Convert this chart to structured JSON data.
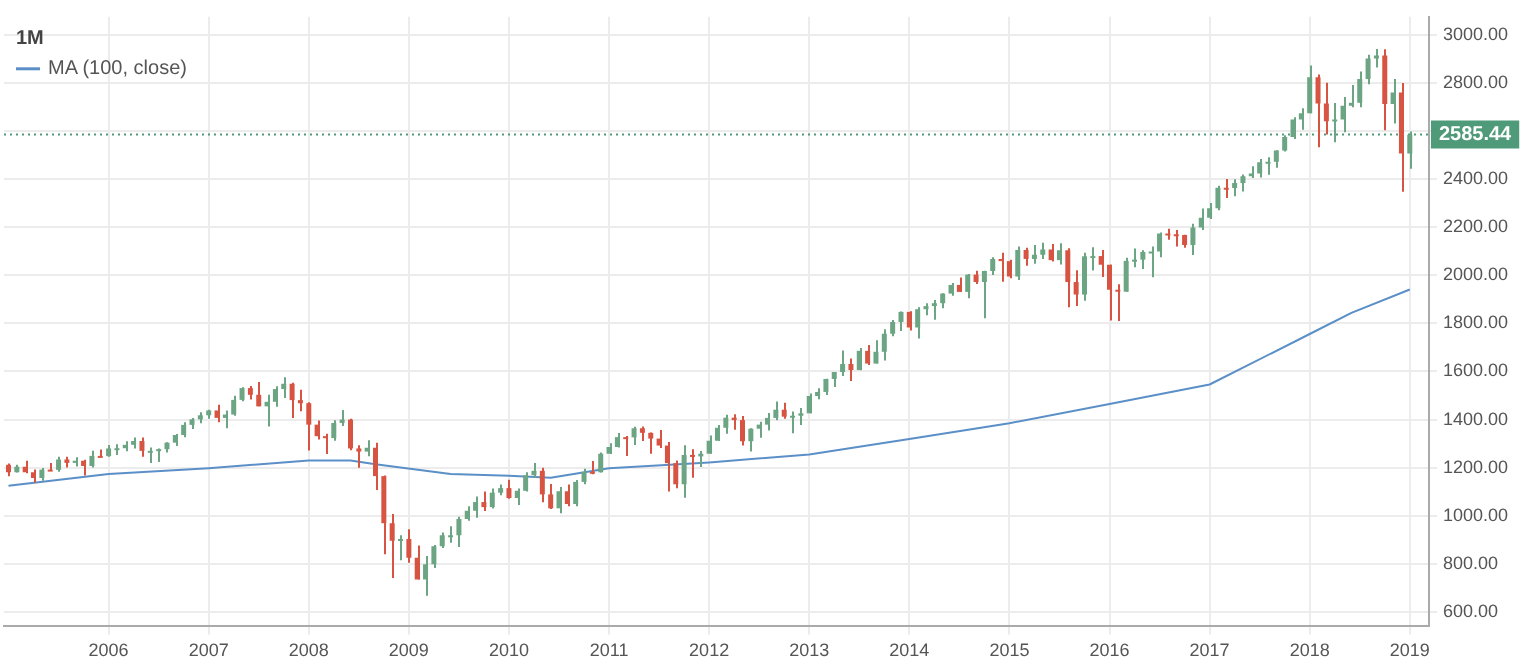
{
  "chart_data": {
    "type": "candlestick",
    "title": "1M",
    "x": [
      "2005-01",
      "2005-02",
      "2005-03",
      "2005-04",
      "2005-05",
      "2005-06",
      "2005-07",
      "2005-08",
      "2005-09",
      "2005-10",
      "2005-11",
      "2005-12",
      "2006-01",
      "2006-02",
      "2006-03",
      "2006-04",
      "2006-05",
      "2006-06",
      "2006-07",
      "2006-08",
      "2006-09",
      "2006-10",
      "2006-11",
      "2006-12",
      "2007-01",
      "2007-02",
      "2007-03",
      "2007-04",
      "2007-05",
      "2007-06",
      "2007-07",
      "2007-08",
      "2007-09",
      "2007-10",
      "2007-11",
      "2007-12",
      "2008-01",
      "2008-02",
      "2008-03",
      "2008-04",
      "2008-05",
      "2008-06",
      "2008-07",
      "2008-08",
      "2008-09",
      "2008-10",
      "2008-11",
      "2008-12",
      "2009-01",
      "2009-02",
      "2009-03",
      "2009-04",
      "2009-05",
      "2009-06",
      "2009-07",
      "2009-08",
      "2009-09",
      "2009-10",
      "2009-11",
      "2009-12",
      "2010-01",
      "2010-02",
      "2010-03",
      "2010-04",
      "2010-05",
      "2010-06",
      "2010-07",
      "2010-08",
      "2010-09",
      "2010-10",
      "2010-11",
      "2010-12",
      "2011-01",
      "2011-02",
      "2011-03",
      "2011-04",
      "2011-05",
      "2011-06",
      "2011-07",
      "2011-08",
      "2011-09",
      "2011-10",
      "2011-11",
      "2011-12",
      "2012-01",
      "2012-02",
      "2012-03",
      "2012-04",
      "2012-05",
      "2012-06",
      "2012-07",
      "2012-08",
      "2012-09",
      "2012-10",
      "2012-11",
      "2012-12",
      "2013-01",
      "2013-02",
      "2013-03",
      "2013-04",
      "2013-05",
      "2013-06",
      "2013-07",
      "2013-08",
      "2013-09",
      "2013-10",
      "2013-11",
      "2013-12",
      "2014-01",
      "2014-02",
      "2014-03",
      "2014-04",
      "2014-05",
      "2014-06",
      "2014-07",
      "2014-08",
      "2014-09",
      "2014-10",
      "2014-11",
      "2014-12",
      "2015-01",
      "2015-02",
      "2015-03",
      "2015-04",
      "2015-05",
      "2015-06",
      "2015-07",
      "2015-08",
      "2015-09",
      "2015-10",
      "2015-11",
      "2015-12",
      "2016-01",
      "2016-02",
      "2016-03",
      "2016-04",
      "2016-05",
      "2016-06",
      "2016-07",
      "2016-08",
      "2016-09",
      "2016-10",
      "2016-11",
      "2016-12",
      "2017-01",
      "2017-02",
      "2017-03",
      "2017-04",
      "2017-05",
      "2017-06",
      "2017-07",
      "2017-08",
      "2017-09",
      "2017-10",
      "2017-11",
      "2017-12",
      "2018-01",
      "2018-02",
      "2018-03",
      "2018-04",
      "2018-05",
      "2018-06",
      "2018-07",
      "2018-08",
      "2018-09",
      "2018-10",
      "2018-11",
      "2018-12",
      "2019-01"
    ],
    "ohlc": [
      [
        1212,
        1217,
        1164,
        1181
      ],
      [
        1181,
        1212,
        1180,
        1204
      ],
      [
        1204,
        1229,
        1177,
        1181
      ],
      [
        1181,
        1192,
        1137,
        1157
      ],
      [
        1157,
        1199,
        1146,
        1192
      ],
      [
        1192,
        1219,
        1188,
        1191
      ],
      [
        1191,
        1245,
        1183,
        1234
      ],
      [
        1234,
        1245,
        1201,
        1220
      ],
      [
        1220,
        1243,
        1205,
        1229
      ],
      [
        1229,
        1233,
        1168,
        1207
      ],
      [
        1207,
        1270,
        1201,
        1249
      ],
      [
        1249,
        1276,
        1246,
        1248
      ],
      [
        1248,
        1294,
        1245,
        1280
      ],
      [
        1280,
        1297,
        1253,
        1281
      ],
      [
        1281,
        1310,
        1268,
        1295
      ],
      [
        1295,
        1326,
        1280,
        1311
      ],
      [
        1311,
        1326,
        1245,
        1270
      ],
      [
        1270,
        1284,
        1219,
        1270
      ],
      [
        1270,
        1280,
        1224,
        1277
      ],
      [
        1277,
        1306,
        1263,
        1304
      ],
      [
        1304,
        1340,
        1290,
        1336
      ],
      [
        1336,
        1389,
        1327,
        1378
      ],
      [
        1378,
        1407,
        1361,
        1401
      ],
      [
        1401,
        1431,
        1385,
        1418
      ],
      [
        1418,
        1441,
        1403,
        1438
      ],
      [
        1438,
        1462,
        1389,
        1407
      ],
      [
        1407,
        1438,
        1364,
        1421
      ],
      [
        1421,
        1499,
        1416,
        1482
      ],
      [
        1482,
        1535,
        1476,
        1531
      ],
      [
        1531,
        1540,
        1484,
        1503
      ],
      [
        1503,
        1556,
        1455,
        1455
      ],
      [
        1455,
        1503,
        1371,
        1474
      ],
      [
        1474,
        1539,
        1453,
        1527
      ],
      [
        1527,
        1576,
        1490,
        1549
      ],
      [
        1549,
        1553,
        1407,
        1481
      ],
      [
        1481,
        1524,
        1435,
        1468
      ],
      [
        1468,
        1472,
        1271,
        1379
      ],
      [
        1379,
        1396,
        1317,
        1331
      ],
      [
        1331,
        1341,
        1257,
        1323
      ],
      [
        1323,
        1397,
        1312,
        1386
      ],
      [
        1386,
        1440,
        1373,
        1400
      ],
      [
        1400,
        1404,
        1272,
        1280
      ],
      [
        1280,
        1293,
        1200,
        1267
      ],
      [
        1267,
        1314,
        1248,
        1283
      ],
      [
        1283,
        1304,
        1107,
        1165
      ],
      [
        1165,
        1168,
        840,
        969
      ],
      [
        969,
        1007,
        741,
        896
      ],
      [
        896,
        919,
        815,
        903
      ],
      [
        903,
        944,
        805,
        826
      ],
      [
        826,
        876,
        735,
        735
      ],
      [
        735,
        833,
        667,
        798
      ],
      [
        798,
        878,
        783,
        873
      ],
      [
        873,
        930,
        866,
        919
      ],
      [
        919,
        956,
        888,
        919
      ],
      [
        919,
        996,
        870,
        987
      ],
      [
        987,
        1040,
        979,
        1021
      ],
      [
        1021,
        1080,
        992,
        1057
      ],
      [
        1057,
        1101,
        1020,
        1036
      ],
      [
        1036,
        1113,
        1030,
        1096
      ],
      [
        1096,
        1130,
        1085,
        1115
      ],
      [
        1115,
        1150,
        1071,
        1074
      ],
      [
        1074,
        1113,
        1045,
        1104
      ],
      [
        1104,
        1181,
        1101,
        1169
      ],
      [
        1169,
        1220,
        1157,
        1187
      ],
      [
        1187,
        1200,
        1056,
        1089
      ],
      [
        1089,
        1132,
        1028,
        1031
      ],
      [
        1031,
        1120,
        1011,
        1102
      ],
      [
        1102,
        1130,
        1040,
        1049
      ],
      [
        1049,
        1149,
        1040,
        1141
      ],
      [
        1141,
        1196,
        1131,
        1183
      ],
      [
        1183,
        1228,
        1173,
        1181
      ],
      [
        1181,
        1263,
        1180,
        1258
      ],
      [
        1258,
        1302,
        1257,
        1286
      ],
      [
        1286,
        1344,
        1284,
        1327
      ],
      [
        1327,
        1332,
        1249,
        1326
      ],
      [
        1326,
        1370,
        1294,
        1364
      ],
      [
        1364,
        1371,
        1311,
        1345
      ],
      [
        1345,
        1346,
        1258,
        1321
      ],
      [
        1321,
        1357,
        1282,
        1292
      ],
      [
        1292,
        1307,
        1101,
        1219
      ],
      [
        1219,
        1230,
        1114,
        1131
      ],
      [
        1131,
        1293,
        1075,
        1253
      ],
      [
        1253,
        1277,
        1158,
        1247
      ],
      [
        1247,
        1269,
        1203,
        1258
      ],
      [
        1258,
        1334,
        1258,
        1312
      ],
      [
        1312,
        1378,
        1312,
        1366
      ],
      [
        1366,
        1420,
        1341,
        1408
      ],
      [
        1408,
        1422,
        1358,
        1398
      ],
      [
        1398,
        1415,
        1292,
        1310
      ],
      [
        1310,
        1364,
        1267,
        1362
      ],
      [
        1362,
        1391,
        1325,
        1379
      ],
      [
        1379,
        1427,
        1355,
        1407
      ],
      [
        1407,
        1475,
        1397,
        1441
      ],
      [
        1441,
        1470,
        1403,
        1412
      ],
      [
        1412,
        1434,
        1343,
        1416
      ],
      [
        1416,
        1448,
        1377,
        1426
      ],
      [
        1426,
        1509,
        1426,
        1498
      ],
      [
        1498,
        1530,
        1485,
        1515
      ],
      [
        1515,
        1570,
        1502,
        1569
      ],
      [
        1569,
        1598,
        1536,
        1598
      ],
      [
        1598,
        1687,
        1581,
        1631
      ],
      [
        1631,
        1654,
        1560,
        1606
      ],
      [
        1606,
        1698,
        1605,
        1686
      ],
      [
        1686,
        1710,
        1627,
        1633
      ],
      [
        1633,
        1730,
        1633,
        1682
      ],
      [
        1682,
        1776,
        1646,
        1757
      ],
      [
        1757,
        1814,
        1747,
        1806
      ],
      [
        1806,
        1849,
        1768,
        1848
      ],
      [
        1848,
        1851,
        1770,
        1783
      ],
      [
        1783,
        1867,
        1737,
        1859
      ],
      [
        1859,
        1884,
        1834,
        1872
      ],
      [
        1872,
        1897,
        1815,
        1884
      ],
      [
        1884,
        1925,
        1863,
        1924
      ],
      [
        1924,
        1968,
        1915,
        1960
      ],
      [
        1960,
        1991,
        1931,
        1931
      ],
      [
        1931,
        2005,
        1905,
        2003
      ],
      [
        2003,
        2019,
        1964,
        1972
      ],
      [
        1972,
        2019,
        1821,
        2018
      ],
      [
        2018,
        2075,
        2001,
        2068
      ],
      [
        2068,
        2094,
        1973,
        2059
      ],
      [
        2059,
        2065,
        1988,
        1995
      ],
      [
        1995,
        2120,
        1981,
        2105
      ],
      [
        2105,
        2115,
        2040,
        2068
      ],
      [
        2068,
        2126,
        2048,
        2086
      ],
      [
        2086,
        2135,
        2068,
        2107
      ],
      [
        2107,
        2130,
        2057,
        2063
      ],
      [
        2063,
        2133,
        2045,
        2104
      ],
      [
        2104,
        2113,
        1867,
        1972
      ],
      [
        1972,
        2021,
        1872,
        1920
      ],
      [
        1920,
        2094,
        1894,
        2079
      ],
      [
        2079,
        2117,
        2020,
        2080
      ],
      [
        2080,
        2105,
        1993,
        2044
      ],
      [
        2044,
        2044,
        1812,
        1940
      ],
      [
        1940,
        1963,
        1810,
        1932
      ],
      [
        1932,
        2073,
        1932,
        2060
      ],
      [
        2060,
        2112,
        2033,
        2065
      ],
      [
        2065,
        2104,
        2026,
        2097
      ],
      [
        2097,
        2120,
        1992,
        2099
      ],
      [
        2099,
        2178,
        2075,
        2174
      ],
      [
        2174,
        2194,
        2148,
        2171
      ],
      [
        2171,
        2188,
        2120,
        2168
      ],
      [
        2168,
        2169,
        2115,
        2126
      ],
      [
        2126,
        2214,
        2084,
        2199
      ],
      [
        2199,
        2278,
        2188,
        2239
      ],
      [
        2239,
        2301,
        2234,
        2279
      ],
      [
        2279,
        2372,
        2271,
        2364
      ],
      [
        2364,
        2401,
        2322,
        2363
      ],
      [
        2363,
        2399,
        2329,
        2384
      ],
      [
        2384,
        2419,
        2348,
        2412
      ],
      [
        2412,
        2454,
        2405,
        2423
      ],
      [
        2423,
        2484,
        2407,
        2470
      ],
      [
        2470,
        2491,
        2418,
        2472
      ],
      [
        2472,
        2520,
        2447,
        2519
      ],
      [
        2519,
        2582,
        2515,
        2575
      ],
      [
        2575,
        2657,
        2567,
        2648
      ],
      [
        2648,
        2695,
        2605,
        2674
      ],
      [
        2674,
        2873,
        2674,
        2824
      ],
      [
        2824,
        2835,
        2533,
        2714
      ],
      [
        2714,
        2801,
        2586,
        2641
      ],
      [
        2641,
        2717,
        2553,
        2648
      ],
      [
        2648,
        2742,
        2595,
        2705
      ],
      [
        2705,
        2791,
        2699,
        2718
      ],
      [
        2718,
        2848,
        2699,
        2816
      ],
      [
        2816,
        2917,
        2795,
        2902
      ],
      [
        2902,
        2941,
        2864,
        2914
      ],
      [
        2914,
        2940,
        2603,
        2712
      ],
      [
        2712,
        2816,
        2631,
        2760
      ],
      [
        2760,
        2800,
        2347,
        2507
      ],
      [
        2507,
        2598,
        2443,
        2585
      ]
    ],
    "colors": [
      "#d75442",
      "#6ba583",
      "#d75442",
      "#d75442",
      "#6ba583",
      "#d75442",
      "#6ba583",
      "#d75442",
      "#6ba583",
      "#d75442",
      "#6ba583",
      "#d75442",
      "#6ba583",
      "#6ba583",
      "#6ba583",
      "#6ba583",
      "#d75442",
      "#6ba583",
      "#6ba583",
      "#6ba583",
      "#6ba583",
      "#6ba583",
      "#6ba583",
      "#6ba583",
      "#6ba583",
      "#d75442",
      "#6ba583",
      "#6ba583",
      "#6ba583",
      "#d75442",
      "#d75442",
      "#6ba583",
      "#6ba583",
      "#6ba583",
      "#d75442",
      "#d75442",
      "#d75442",
      "#d75442",
      "#d75442",
      "#6ba583",
      "#6ba583",
      "#d75442",
      "#d75442",
      "#6ba583",
      "#d75442",
      "#d75442",
      "#d75442",
      "#6ba583",
      "#d75442",
      "#d75442",
      "#6ba583",
      "#6ba583",
      "#6ba583",
      "#6ba583",
      "#6ba583",
      "#6ba583",
      "#6ba583",
      "#d75442",
      "#6ba583",
      "#6ba583",
      "#d75442",
      "#6ba583",
      "#6ba583",
      "#6ba583",
      "#d75442",
      "#d75442",
      "#6ba583",
      "#d75442",
      "#6ba583",
      "#6ba583",
      "#d75442",
      "#6ba583",
      "#6ba583",
      "#6ba583",
      "#d75442",
      "#6ba583",
      "#d75442",
      "#d75442",
      "#d75442",
      "#d75442",
      "#d75442",
      "#6ba583",
      "#d75442",
      "#6ba583",
      "#6ba583",
      "#6ba583",
      "#6ba583",
      "#d75442",
      "#d75442",
      "#6ba583",
      "#6ba583",
      "#6ba583",
      "#6ba583",
      "#d75442",
      "#6ba583",
      "#6ba583",
      "#6ba583",
      "#6ba583",
      "#6ba583",
      "#6ba583",
      "#6ba583",
      "#d75442",
      "#6ba583",
      "#d75442",
      "#6ba583",
      "#6ba583",
      "#6ba583",
      "#6ba583",
      "#d75442",
      "#6ba583",
      "#6ba583",
      "#6ba583",
      "#6ba583",
      "#6ba583",
      "#d75442",
      "#6ba583",
      "#d75442",
      "#6ba583",
      "#6ba583",
      "#d75442",
      "#d75442",
      "#6ba583",
      "#d75442",
      "#6ba583",
      "#6ba583",
      "#d75442",
      "#6ba583",
      "#d75442",
      "#d75442",
      "#6ba583",
      "#6ba583",
      "#d75442",
      "#d75442",
      "#d75442",
      "#6ba583",
      "#6ba583",
      "#6ba583",
      "#6ba583",
      "#6ba583",
      "#d75442",
      "#d75442",
      "#d75442",
      "#6ba583",
      "#6ba583",
      "#6ba583",
      "#6ba583",
      "#d75442",
      "#6ba583",
      "#6ba583",
      "#6ba583",
      "#6ba583",
      "#6ba583",
      "#6ba583",
      "#6ba583",
      "#6ba583",
      "#6ba583",
      "#6ba583",
      "#d75442",
      "#d75442",
      "#6ba583",
      "#6ba583",
      "#6ba583",
      "#6ba583",
      "#6ba583",
      "#6ba583",
      "#d75442",
      "#6ba583",
      "#d75442",
      "#6ba583"
    ],
    "series": [
      {
        "type": "line",
        "name": "MA (100, close)",
        "color": "#5b8fc7",
        "x": [
          "2005-01",
          "2006-01",
          "2007-01",
          "2008-01",
          "2008-06",
          "2008-09",
          "2009-06",
          "2010-01",
          "2010-06",
          "2011-01",
          "2012-01",
          "2013-01",
          "2014-01",
          "2015-01",
          "2016-01",
          "2017-01",
          "2018-01",
          "2018-06",
          "2019-01"
        ],
        "values": [
          1125,
          1174,
          1198,
          1230,
          1230,
          1214,
          1174,
          1166,
          1158,
          1198,
          1222,
          1255,
          1319,
          1385,
          1465,
          1546,
          1756,
          1844,
          1941
        ]
      }
    ],
    "xlim": [
      "2004-12-15",
      "2019-03-10"
    ],
    "xticks": [
      {
        "value": "2006",
        "label": "2006"
      },
      {
        "value": "2007",
        "label": "2007"
      },
      {
        "value": "2008",
        "label": "2008"
      },
      {
        "value": "2009",
        "label": "2009"
      },
      {
        "value": "2010",
        "label": "2010"
      },
      {
        "value": "2011",
        "label": "2011"
      },
      {
        "value": "2012",
        "label": "2012"
      },
      {
        "value": "2013",
        "label": "2013"
      },
      {
        "value": "2014",
        "label": "2014"
      },
      {
        "value": "2015",
        "label": "2015"
      },
      {
        "value": "2016",
        "label": "2016"
      },
      {
        "value": "2017",
        "label": "2017"
      },
      {
        "value": "2018",
        "label": "2018"
      },
      {
        "value": "2019",
        "label": "2019"
      }
    ],
    "ylim": [
      540,
      3075
    ],
    "yticks": [
      {
        "value": 600,
        "label": "600.00"
      },
      {
        "value": 800,
        "label": "800.00"
      },
      {
        "value": 1000,
        "label": "1000.00"
      },
      {
        "value": 1200,
        "label": "1200.00"
      },
      {
        "value": 1400,
        "label": "1400.00"
      },
      {
        "value": 1600,
        "label": "1600.00"
      },
      {
        "value": 1800,
        "label": "1800.00"
      },
      {
        "value": 2000,
        "label": "2000.00"
      },
      {
        "value": 2200,
        "label": "2200.00"
      },
      {
        "value": 2400,
        "label": "2400.00"
      },
      {
        "value": 2600,
        "label": null
      },
      {
        "value": 2800,
        "label": "2800.00"
      },
      {
        "value": 3000,
        "label": "3000.00"
      }
    ],
    "ref_lines": [
      {
        "axis": "y",
        "value": 2585.44,
        "label": "2585.44",
        "color": "#4f9a78",
        "line_style": "dotted"
      }
    ],
    "grid": true,
    "legend": "top left"
  }
}
